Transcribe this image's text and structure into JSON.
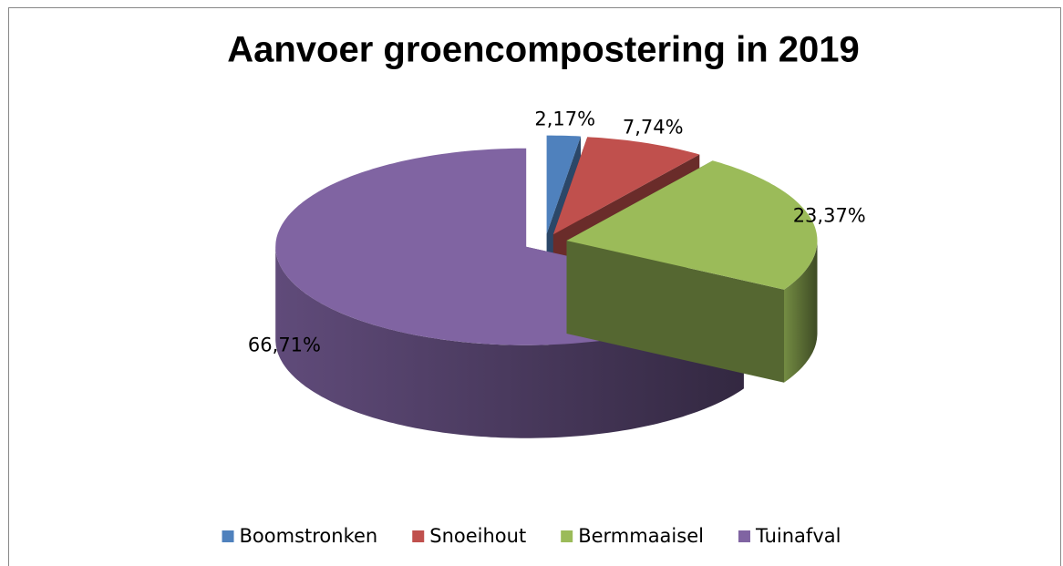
{
  "chart_data": {
    "type": "pie",
    "title": "Aanvoer groencompostering in 2019",
    "categories": [
      "Boomstronken",
      "Snoeihout",
      "Bermmaaisel",
      "Tuinafval"
    ],
    "values": [
      2.17,
      7.74,
      23.37,
      66.71
    ],
    "value_labels": [
      "2,17%",
      "7,74%",
      "23,37%",
      "66,71%"
    ],
    "colors": [
      "#4f81bd",
      "#c0504d",
      "#9bbb59",
      "#8064a2"
    ],
    "legend": "bottom"
  }
}
